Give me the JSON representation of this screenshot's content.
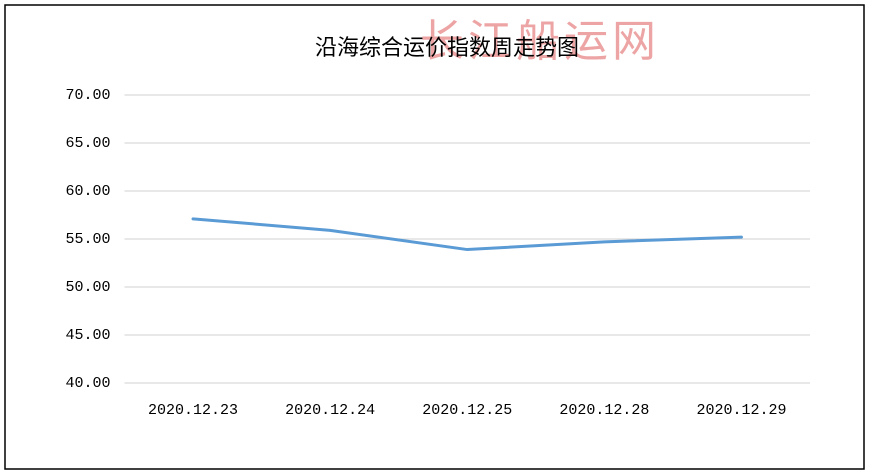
{
  "chart_data": {
    "type": "line",
    "title": "沿海综合运价指数周走势图",
    "watermark": "长江船运网",
    "categories": [
      "2020.12.23",
      "2020.12.24",
      "2020.12.25",
      "2020.12.28",
      "2020.12.29"
    ],
    "series": [
      {
        "name": "沿海综合运价指数",
        "color": "#5b9bd5",
        "values": [
          57.1,
          55.9,
          53.9,
          54.7,
          55.2
        ]
      }
    ],
    "ylim": [
      40,
      70
    ],
    "yticks": [
      {
        "value": 40,
        "label": "40.00"
      },
      {
        "value": 45,
        "label": "45.00"
      },
      {
        "value": 50,
        "label": "50.00"
      },
      {
        "value": 55,
        "label": "55.00"
      },
      {
        "value": 60,
        "label": "60.00"
      },
      {
        "value": 65,
        "label": "65.00"
      },
      {
        "value": 70,
        "label": "70.00"
      }
    ],
    "grid": true,
    "legend": false
  }
}
